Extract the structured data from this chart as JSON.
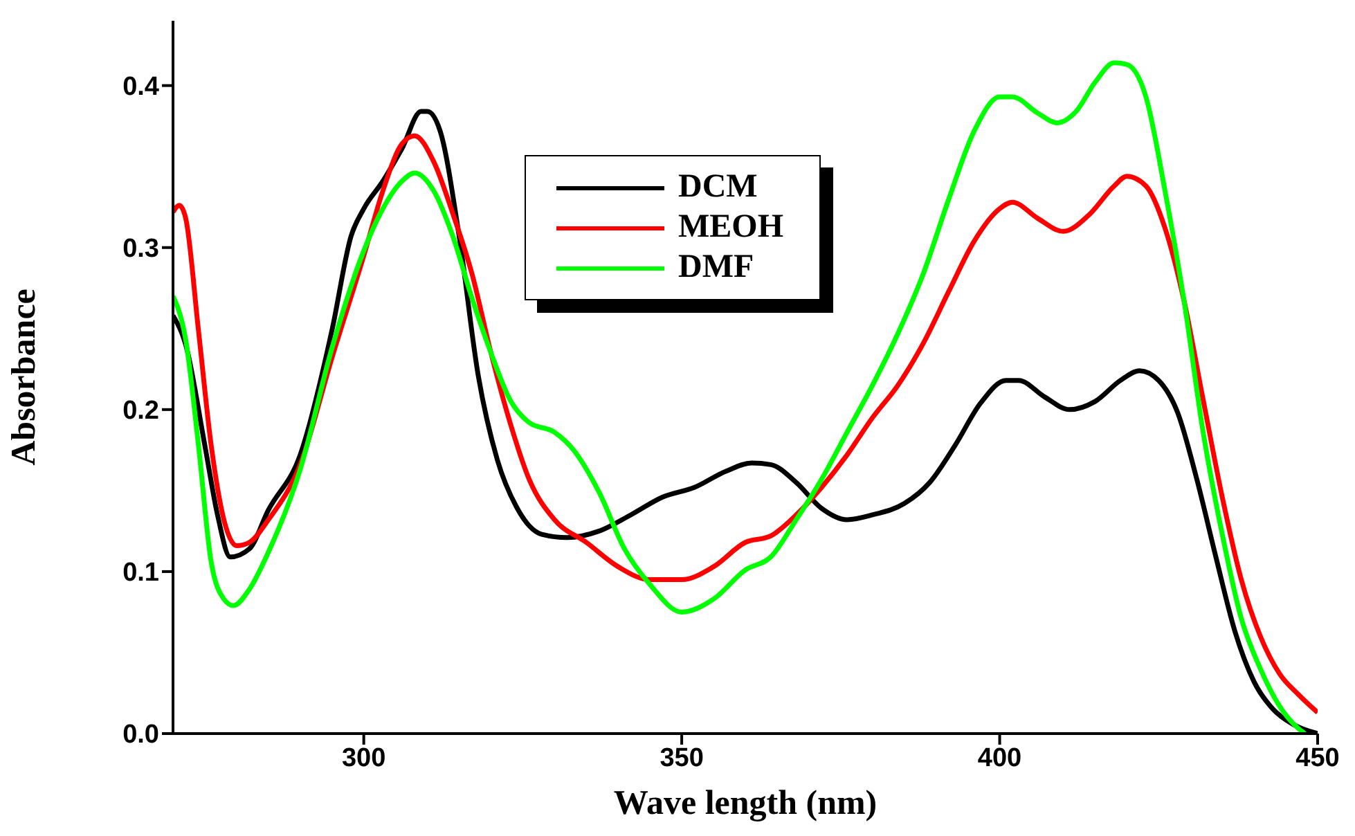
{
  "chart_data": {
    "type": "line",
    "xlabel": "Wave length (nm)",
    "ylabel": "Absorbance",
    "xlim": [
      270,
      450
    ],
    "xticks": [
      300,
      350,
      400,
      450
    ],
    "ylim": [
      0,
      0.44
    ],
    "yticks": [
      {
        "value": 0,
        "label": "0.0"
      },
      0.1,
      0.2,
      0.3,
      0.4
    ],
    "grid": false,
    "legend": "top",
    "marker": "none",
    "line_style": "solid",
    "series": [
      {
        "name": "DCM",
        "color": "#000000",
        "x": [
          270,
          272,
          275,
          277,
          279,
          282,
          285,
          290,
          295,
          298,
          300,
          303,
          306,
          309,
          310,
          312,
          315,
          318,
          321,
          324,
          328,
          332,
          337,
          342,
          347,
          352,
          357,
          361,
          364,
          368,
          372,
          376,
          380,
          385,
          389,
          393,
          397,
          401,
          403,
          407,
          411,
          415,
          419,
          422,
          425,
          428,
          431,
          434,
          437,
          440,
          443,
          446,
          450
        ],
        "values": [
          0.258,
          0.24,
          0.178,
          0.135,
          0.109,
          0.114,
          0.138,
          0.172,
          0.249,
          0.307,
          0.324,
          0.341,
          0.361,
          0.384,
          0.384,
          0.372,
          0.307,
          0.221,
          0.169,
          0.14,
          0.123,
          0.121,
          0.125,
          0.135,
          0.146,
          0.152,
          0.162,
          0.167,
          0.166,
          0.155,
          0.139,
          0.132,
          0.135,
          0.142,
          0.155,
          0.178,
          0.204,
          0.218,
          0.218,
          0.208,
          0.2,
          0.205,
          0.218,
          0.224,
          0.218,
          0.198,
          0.157,
          0.109,
          0.063,
          0.032,
          0.015,
          0.006,
          0.0
        ]
      },
      {
        "name": "MEOH",
        "color": "#ff0000",
        "x": [
          270,
          271,
          272,
          274,
          276,
          278,
          280,
          282,
          285,
          290,
          295,
          300,
          303,
          306,
          308,
          311,
          314,
          317,
          320,
          323,
          326,
          330,
          335,
          340,
          345,
          350,
          355,
          360,
          364,
          368,
          372,
          376,
          380,
          384,
          388,
          392,
          396,
          400,
          402,
          406,
          410,
          414,
          418,
          420,
          423,
          426,
          429,
          432,
          435,
          438,
          441,
          444,
          447,
          450
        ],
        "values": [
          0.322,
          0.326,
          0.318,
          0.249,
          0.178,
          0.132,
          0.116,
          0.118,
          0.132,
          0.166,
          0.232,
          0.295,
          0.335,
          0.364,
          0.369,
          0.353,
          0.321,
          0.284,
          0.235,
          0.192,
          0.157,
          0.132,
          0.118,
          0.103,
          0.095,
          0.095,
          0.103,
          0.118,
          0.122,
          0.135,
          0.152,
          0.172,
          0.195,
          0.215,
          0.241,
          0.273,
          0.304,
          0.324,
          0.328,
          0.318,
          0.31,
          0.32,
          0.338,
          0.344,
          0.338,
          0.312,
          0.267,
          0.206,
          0.146,
          0.095,
          0.06,
          0.037,
          0.024,
          0.013
        ]
      },
      {
        "name": "DMF",
        "color": "#00ff00",
        "x": [
          270,
          272,
          274,
          276,
          278,
          279.5,
          282,
          285,
          290,
          295,
          300,
          303,
          306,
          308,
          311,
          314,
          317,
          320,
          323,
          326,
          330,
          333,
          337,
          341,
          345,
          350,
          355,
          360,
          364,
          368,
          372,
          376,
          380,
          384,
          388,
          392,
          396,
          400,
          402,
          406,
          409,
          412,
          415,
          418,
          420,
          423,
          426,
          429,
          432,
          435,
          438,
          441,
          444,
          447,
          448
        ],
        "values": [
          0.27,
          0.243,
          0.178,
          0.106,
          0.083,
          0.079,
          0.089,
          0.112,
          0.163,
          0.238,
          0.298,
          0.324,
          0.341,
          0.346,
          0.335,
          0.307,
          0.269,
          0.235,
          0.206,
          0.192,
          0.186,
          0.175,
          0.149,
          0.114,
          0.092,
          0.075,
          0.083,
          0.101,
          0.109,
          0.132,
          0.157,
          0.186,
          0.215,
          0.247,
          0.284,
          0.33,
          0.372,
          0.393,
          0.393,
          0.383,
          0.377,
          0.384,
          0.402,
          0.414,
          0.413,
          0.393,
          0.335,
          0.267,
          0.186,
          0.123,
          0.071,
          0.04,
          0.017,
          0.003,
          0.0
        ]
      }
    ]
  }
}
